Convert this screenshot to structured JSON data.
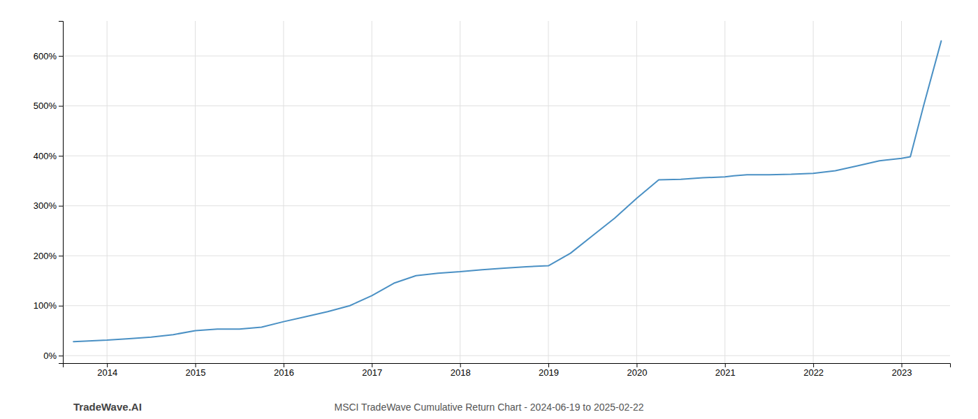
{
  "chart_data": {
    "type": "line",
    "title": "MSCI TradeWave Cumulative Return Chart - 2024-06-19 to 2025-02-22",
    "annotations": [
      "TradeWave.AI"
    ],
    "color": "#4a90c4",
    "grid": true,
    "x": [
      2013.62,
      2013.75,
      2014.0,
      2014.25,
      2014.5,
      2014.75,
      2015.0,
      2015.25,
      2015.5,
      2015.75,
      2016.0,
      2016.25,
      2016.5,
      2016.75,
      2017.0,
      2017.25,
      2017.5,
      2017.75,
      2018.0,
      2018.25,
      2018.5,
      2018.75,
      2019.0,
      2019.25,
      2019.5,
      2019.75,
      2020.0,
      2020.25,
      2020.5,
      2020.75,
      2021.0,
      2021.1,
      2021.25,
      2021.5,
      2021.75,
      2022.0,
      2022.25,
      2022.5,
      2022.75,
      2023.0,
      2023.1,
      2023.25,
      2023.45
    ],
    "values": [
      28,
      29,
      31,
      34,
      37,
      42,
      50,
      53,
      53,
      57,
      68,
      78,
      88,
      100,
      120,
      145,
      160,
      165,
      168,
      172,
      175,
      178,
      180,
      205,
      240,
      275,
      315,
      352,
      353,
      356,
      358,
      360,
      362,
      362,
      363,
      365,
      370,
      380,
      390,
      395,
      398,
      500,
      630
    ],
    "xlim": [
      2013.5,
      2023.55
    ],
    "xticks": [
      2014,
      2015,
      2016,
      2017,
      2018,
      2019,
      2020,
      2021,
      2022,
      2023
    ],
    "ylim": [
      -15,
      670
    ],
    "yticks": [
      {
        "value": 0,
        "label": "0%"
      },
      {
        "value": 100,
        "label": "100%"
      },
      {
        "value": 200,
        "label": "200%"
      },
      {
        "value": 300,
        "label": "300%"
      },
      {
        "value": 400,
        "label": "400%"
      },
      {
        "value": 500,
        "label": "500%"
      },
      {
        "value": 600,
        "label": "600%"
      }
    ]
  }
}
